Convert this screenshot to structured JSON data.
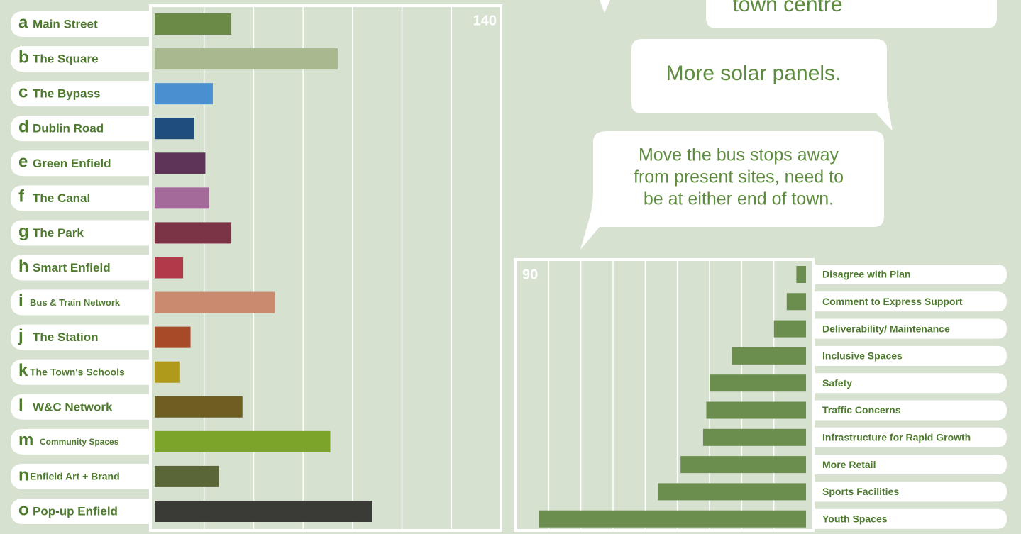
{
  "chart_data": [
    {
      "type": "hbar",
      "letters": [
        "a",
        "b",
        "c",
        "d",
        "e",
        "f",
        "g",
        "h",
        "i",
        "j",
        "k",
        "l",
        "m",
        "n",
        "o"
      ],
      "categories": [
        "Main Street",
        "The Square",
        "The Bypass",
        "Dublin Road",
        "Green Enfield",
        "The Canal",
        "The Park",
        "Smart Enfield",
        "Bus & Train Network",
        "The Station",
        "The Town's Schools",
        "W&C Network",
        "Community Spaces",
        "Enfield Art + Brand",
        "Pop-up Enfield"
      ],
      "values": [
        31,
        74,
        23.5,
        16,
        20.5,
        22,
        31,
        11.5,
        48.5,
        14.5,
        10,
        35.5,
        71,
        26,
        88
      ],
      "colors": [
        "#6b8a47",
        "#a8b98f",
        "#4a90d0",
        "#1f4e7e",
        "#5e3559",
        "#a46a9a",
        "#7a3446",
        "#b03a4a",
        "#c98a70",
        "#a64a28",
        "#b09a1c",
        "#6e5e22",
        "#7ca32a",
        "#5a6638",
        "#3a3a36"
      ],
      "xlim": [
        0,
        140
      ],
      "xticks": [
        20,
        40,
        60,
        80,
        100,
        120,
        140
      ],
      "grid": true
    },
    {
      "type": "hbar-left",
      "categories": [
        "Disagree with Plan",
        "Comment to Express Support",
        "Deliverability/ Maintenance",
        "Inclusive Spaces",
        "Safety",
        "Traffic Concerns",
        "Infrastructure for Rapid Growth",
        "More Retail",
        "Sports Facilities",
        "Youth Spaces"
      ],
      "values": [
        3,
        6,
        10,
        23,
        30,
        31,
        32,
        39,
        46,
        83
      ],
      "color": "#6b8e4e",
      "xlim": [
        0,
        90
      ],
      "xticks": [
        10,
        20,
        30,
        40,
        50,
        60,
        70,
        80,
        90
      ],
      "grid": true
    }
  ],
  "speech_bubbles": [
    {
      "lines": [
        "town centre"
      ]
    },
    {
      "lines": [
        "More solar panels."
      ]
    },
    {
      "lines": [
        "Move the bus stops away",
        "from present sites, need to",
        "be at either end of town."
      ]
    }
  ]
}
